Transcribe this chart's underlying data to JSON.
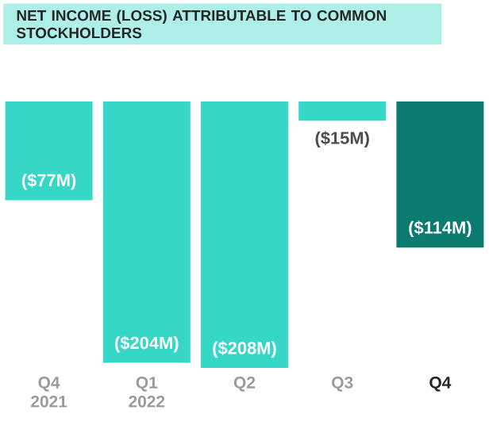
{
  "chart_data": {
    "type": "bar",
    "title": "NET INCOME (LOSS) ATTRIBUTABLE TO COMMON STOCKHOLDERS",
    "categories": [
      "Q4 2021",
      "Q1 2022",
      "Q2",
      "Q3",
      "Q4"
    ],
    "values": [
      -77,
      -204,
      -208,
      -15,
      -114
    ],
    "value_labels": [
      "($77M)",
      "($204M)",
      "($208M)",
      "($15M)",
      "($114M)"
    ],
    "colors": [
      "#36d7c6",
      "#36d7c6",
      "#36d7c6",
      "#36d7c6",
      "#0b7a6f"
    ]
  }
}
